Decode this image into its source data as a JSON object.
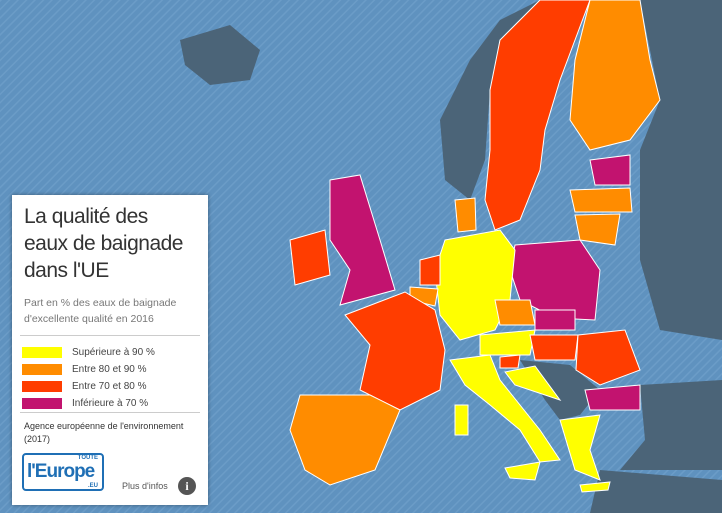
{
  "title": "La qualité des eaux de baignade dans l'UE",
  "subtitle": "Part en % des eaux de baignade d'excellente qualité en 2016",
  "legend": {
    "items": [
      {
        "label": "Supérieure à 90 %",
        "color": "#ffff00"
      },
      {
        "label": "Entre 80 et 90 %",
        "color": "#ff8c00"
      },
      {
        "label": "Entre 70 et 80 %",
        "color": "#ff3d00"
      },
      {
        "label": "Inférieure à 70 %",
        "color": "#c2136f"
      }
    ]
  },
  "source": "Agence européenne de l'environnement (2017)",
  "logo": {
    "top": "TOUTE",
    "main": "l'Europe",
    "suffix": ".EU"
  },
  "more_info": "Plus d'infos"
}
